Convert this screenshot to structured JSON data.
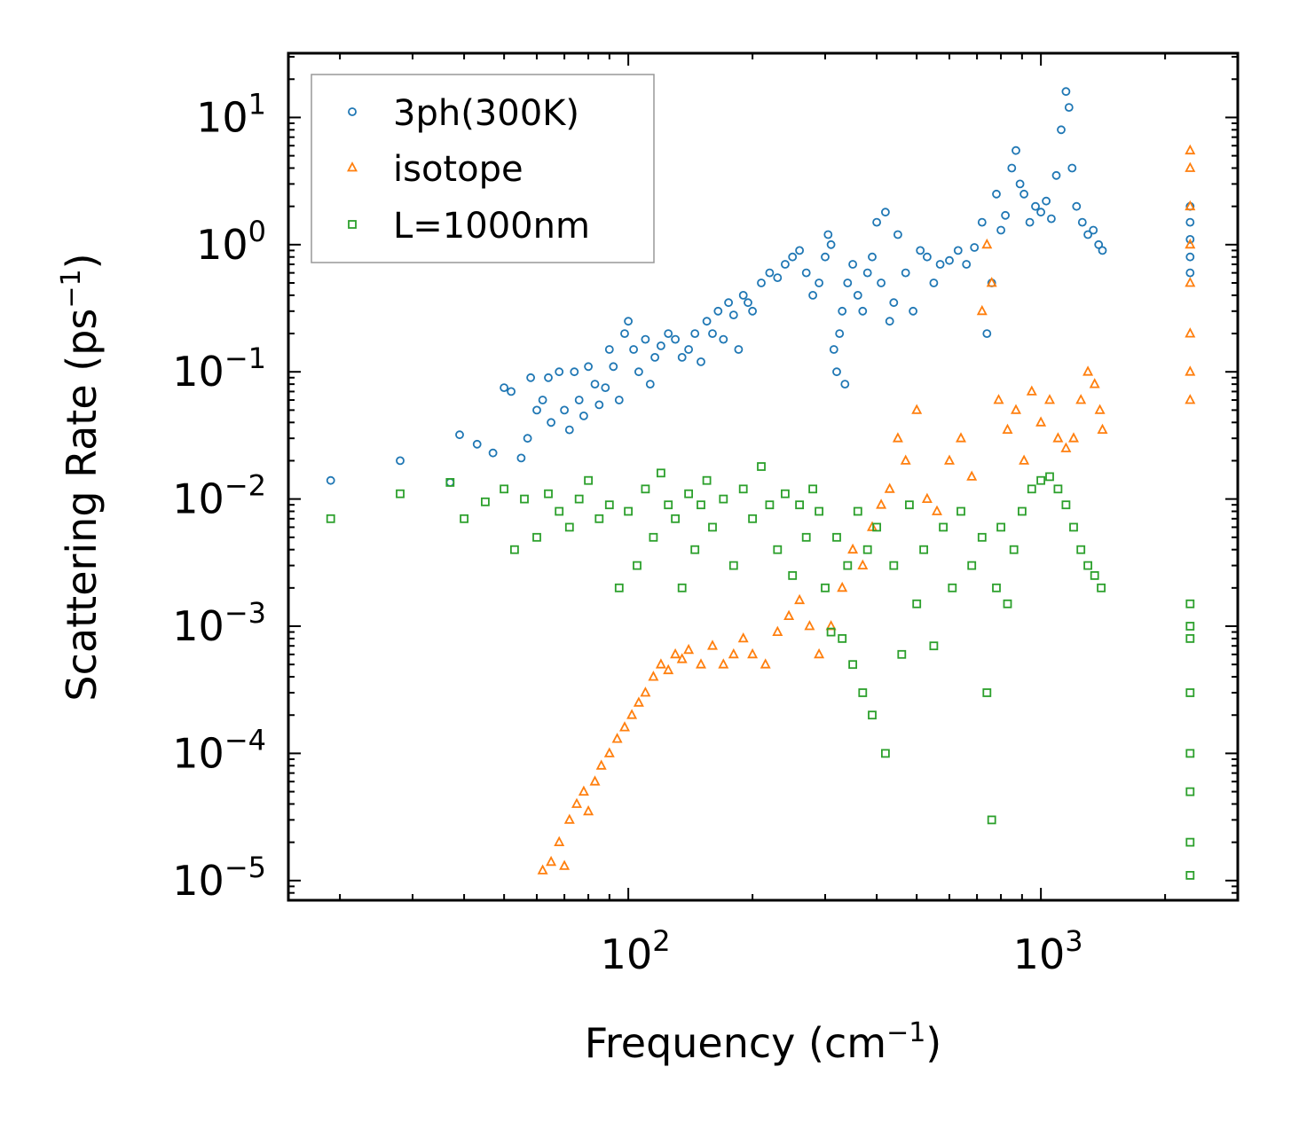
{
  "chart_data": {
    "type": "scatter",
    "title": "",
    "xlabel": "Frequency (cm",
    "xlabel_sup": "−1",
    "xlabel_end": ")",
    "ylabel": "Scattering Rate (ps",
    "ylabel_sup": "−1",
    "ylabel_end": ")",
    "x_scale": "log",
    "y_scale": "log",
    "xlim": [
      15,
      3000
    ],
    "ylim": [
      7e-06,
      32
    ],
    "grid": false,
    "legend_position": "top-left",
    "x_ticks": [
      {
        "value": 100,
        "base": "10",
        "exp": "2"
      },
      {
        "value": 1000,
        "base": "10",
        "exp": "3"
      }
    ],
    "y_ticks": [
      {
        "value": 10,
        "base": "10",
        "exp": "1"
      },
      {
        "value": 1,
        "base": "10",
        "exp": "0"
      },
      {
        "value": 0.1,
        "base": "10",
        "exp": "−1"
      },
      {
        "value": 0.01,
        "base": "10",
        "exp": "−2"
      },
      {
        "value": 0.001,
        "base": "10",
        "exp": "−3"
      },
      {
        "value": 0.0001,
        "base": "10",
        "exp": "−4"
      },
      {
        "value": 1e-05,
        "base": "10",
        "exp": "−5"
      }
    ],
    "series": [
      {
        "name": "3ph(300K)",
        "marker": "circle",
        "color": "#1f77b4",
        "points": [
          [
            19,
            0.014
          ],
          [
            28,
            0.02
          ],
          [
            37,
            0.0135
          ],
          [
            39,
            0.032
          ],
          [
            43,
            0.027
          ],
          [
            47,
            0.023
          ],
          [
            50,
            0.075
          ],
          [
            52,
            0.07
          ],
          [
            55,
            0.021
          ],
          [
            57,
            0.03
          ],
          [
            58,
            0.09
          ],
          [
            60,
            0.05
          ],
          [
            62,
            0.06
          ],
          [
            64,
            0.09
          ],
          [
            65,
            0.04
          ],
          [
            68,
            0.1
          ],
          [
            70,
            0.05
          ],
          [
            72,
            0.035
          ],
          [
            74,
            0.1
          ],
          [
            76,
            0.06
          ],
          [
            78,
            0.045
          ],
          [
            80,
            0.11
          ],
          [
            83,
            0.08
          ],
          [
            85,
            0.055
          ],
          [
            88,
            0.075
          ],
          [
            90,
            0.15
          ],
          [
            92,
            0.11
          ],
          [
            95,
            0.06
          ],
          [
            98,
            0.2
          ],
          [
            100,
            0.25
          ],
          [
            103,
            0.15
          ],
          [
            106,
            0.1
          ],
          [
            110,
            0.18
          ],
          [
            113,
            0.08
          ],
          [
            116,
            0.13
          ],
          [
            120,
            0.16
          ],
          [
            125,
            0.2
          ],
          [
            130,
            0.18
          ],
          [
            135,
            0.13
          ],
          [
            140,
            0.15
          ],
          [
            145,
            0.2
          ],
          [
            150,
            0.12
          ],
          [
            155,
            0.25
          ],
          [
            160,
            0.2
          ],
          [
            165,
            0.3
          ],
          [
            170,
            0.18
          ],
          [
            175,
            0.35
          ],
          [
            180,
            0.28
          ],
          [
            185,
            0.15
          ],
          [
            190,
            0.4
          ],
          [
            195,
            0.35
          ],
          [
            200,
            0.3
          ],
          [
            210,
            0.5
          ],
          [
            220,
            0.6
          ],
          [
            230,
            0.55
          ],
          [
            240,
            0.7
          ],
          [
            250,
            0.8
          ],
          [
            260,
            0.9
          ],
          [
            270,
            0.6
          ],
          [
            280,
            0.4
          ],
          [
            290,
            0.5
          ],
          [
            300,
            0.8
          ],
          [
            305,
            1.2
          ],
          [
            310,
            1.0
          ],
          [
            315,
            0.15
          ],
          [
            320,
            0.1
          ],
          [
            325,
            0.2
          ],
          [
            330,
            0.3
          ],
          [
            335,
            0.08
          ],
          [
            340,
            0.5
          ],
          [
            350,
            0.7
          ],
          [
            360,
            0.4
          ],
          [
            370,
            0.3
          ],
          [
            380,
            0.6
          ],
          [
            390,
            0.8
          ],
          [
            400,
            1.5
          ],
          [
            410,
            0.5
          ],
          [
            420,
            1.8
          ],
          [
            430,
            0.25
          ],
          [
            440,
            0.35
          ],
          [
            450,
            1.2
          ],
          [
            470,
            0.6
          ],
          [
            490,
            0.3
          ],
          [
            510,
            0.9
          ],
          [
            530,
            0.8
          ],
          [
            550,
            0.5
          ],
          [
            570,
            0.7
          ],
          [
            600,
            0.75
          ],
          [
            630,
            0.9
          ],
          [
            660,
            0.7
          ],
          [
            690,
            0.95
          ],
          [
            720,
            1.5
          ],
          [
            740,
            0.2
          ],
          [
            760,
            0.5
          ],
          [
            780,
            2.5
          ],
          [
            800,
            1.3
          ],
          [
            820,
            1.7
          ],
          [
            850,
            4.0
          ],
          [
            870,
            5.5
          ],
          [
            890,
            3.0
          ],
          [
            910,
            2.5
          ],
          [
            940,
            1.5
          ],
          [
            970,
            2.0
          ],
          [
            1000,
            1.8
          ],
          [
            1030,
            2.2
          ],
          [
            1060,
            1.6
          ],
          [
            1090,
            3.5
          ],
          [
            1120,
            8.0
          ],
          [
            1150,
            16.0
          ],
          [
            1170,
            12.0
          ],
          [
            1190,
            4.0
          ],
          [
            1220,
            2.0
          ],
          [
            1260,
            1.5
          ],
          [
            1300,
            1.2
          ],
          [
            1340,
            1.3
          ],
          [
            1380,
            1.0
          ],
          [
            1410,
            0.9
          ],
          [
            2300,
            1.5
          ],
          [
            2300,
            0.8
          ],
          [
            2300,
            2.0
          ],
          [
            2300,
            0.6
          ],
          [
            2300,
            1.1
          ]
        ]
      },
      {
        "name": "isotope",
        "marker": "triangle",
        "color": "#ff7f0e",
        "points": [
          [
            62,
            1.2e-05
          ],
          [
            65,
            1.4e-05
          ],
          [
            68,
            2e-05
          ],
          [
            70,
            1.3e-05
          ],
          [
            72,
            3e-05
          ],
          [
            75,
            4e-05
          ],
          [
            78,
            5e-05
          ],
          [
            80,
            3.5e-05
          ],
          [
            83,
            6e-05
          ],
          [
            86,
            8e-05
          ],
          [
            90,
            0.0001
          ],
          [
            94,
            0.00013
          ],
          [
            98,
            0.00016
          ],
          [
            102,
            0.0002
          ],
          [
            106,
            0.00025
          ],
          [
            110,
            0.0003
          ],
          [
            115,
            0.0004
          ],
          [
            120,
            0.0005
          ],
          [
            125,
            0.00045
          ],
          [
            130,
            0.0006
          ],
          [
            135,
            0.00055
          ],
          [
            140,
            0.00065
          ],
          [
            150,
            0.0005
          ],
          [
            160,
            0.0007
          ],
          [
            170,
            0.0005
          ],
          [
            180,
            0.0006
          ],
          [
            190,
            0.0008
          ],
          [
            200,
            0.0006
          ],
          [
            215,
            0.0005
          ],
          [
            230,
            0.0009
          ],
          [
            245,
            0.0012
          ],
          [
            260,
            0.0016
          ],
          [
            275,
            0.001
          ],
          [
            290,
            0.0006
          ],
          [
            310,
            0.001
          ],
          [
            330,
            0.002
          ],
          [
            350,
            0.004
          ],
          [
            370,
            0.003
          ],
          [
            390,
            0.006
          ],
          [
            410,
            0.009
          ],
          [
            430,
            0.012
          ],
          [
            450,
            0.03
          ],
          [
            470,
            0.02
          ],
          [
            500,
            0.05
          ],
          [
            530,
            0.01
          ],
          [
            560,
            0.008
          ],
          [
            600,
            0.02
          ],
          [
            640,
            0.03
          ],
          [
            680,
            0.015
          ],
          [
            720,
            0.3
          ],
          [
            740,
            1.0
          ],
          [
            760,
            0.5
          ],
          [
            790,
            0.06
          ],
          [
            830,
            0.035
          ],
          [
            870,
            0.05
          ],
          [
            910,
            0.02
          ],
          [
            950,
            0.07
          ],
          [
            1000,
            0.04
          ],
          [
            1050,
            0.06
          ],
          [
            1100,
            0.03
          ],
          [
            1150,
            0.025
          ],
          [
            1200,
            0.03
          ],
          [
            1250,
            0.06
          ],
          [
            1300,
            0.1
          ],
          [
            1350,
            0.08
          ],
          [
            1390,
            0.05
          ],
          [
            1410,
            0.035
          ],
          [
            2300,
            0.06
          ],
          [
            2300,
            0.2
          ],
          [
            2300,
            0.5
          ],
          [
            2300,
            1.0
          ],
          [
            2300,
            2.0
          ],
          [
            2300,
            4.0
          ],
          [
            2300,
            5.5
          ],
          [
            2300,
            0.1
          ]
        ]
      },
      {
        "name": "L=1000nm",
        "marker": "square",
        "color": "#2ca02c",
        "points": [
          [
            19,
            0.007
          ],
          [
            28,
            0.011
          ],
          [
            37,
            0.0135
          ],
          [
            40,
            0.007
          ],
          [
            45,
            0.0095
          ],
          [
            50,
            0.012
          ],
          [
            53,
            0.004
          ],
          [
            56,
            0.01
          ],
          [
            60,
            0.005
          ],
          [
            64,
            0.011
          ],
          [
            68,
            0.008
          ],
          [
            72,
            0.006
          ],
          [
            76,
            0.01
          ],
          [
            80,
            0.014
          ],
          [
            85,
            0.007
          ],
          [
            90,
            0.009
          ],
          [
            95,
            0.002
          ],
          [
            100,
            0.008
          ],
          [
            105,
            0.003
          ],
          [
            110,
            0.012
          ],
          [
            115,
            0.005
          ],
          [
            120,
            0.016
          ],
          [
            125,
            0.009
          ],
          [
            130,
            0.007
          ],
          [
            135,
            0.002
          ],
          [
            140,
            0.011
          ],
          [
            145,
            0.004
          ],
          [
            150,
            0.009
          ],
          [
            155,
            0.014
          ],
          [
            160,
            0.006
          ],
          [
            170,
            0.01
          ],
          [
            180,
            0.003
          ],
          [
            190,
            0.012
          ],
          [
            200,
            0.007
          ],
          [
            210,
            0.018
          ],
          [
            220,
            0.009
          ],
          [
            230,
            0.004
          ],
          [
            240,
            0.011
          ],
          [
            250,
            0.0025
          ],
          [
            260,
            0.009
          ],
          [
            270,
            0.005
          ],
          [
            280,
            0.012
          ],
          [
            290,
            0.008
          ],
          [
            300,
            0.002
          ],
          [
            310,
            0.0009
          ],
          [
            320,
            0.005
          ],
          [
            330,
            0.0008
          ],
          [
            340,
            0.003
          ],
          [
            350,
            0.0005
          ],
          [
            360,
            0.008
          ],
          [
            370,
            0.0003
          ],
          [
            380,
            0.004
          ],
          [
            390,
            0.0002
          ],
          [
            400,
            0.006
          ],
          [
            420,
            0.0001
          ],
          [
            440,
            0.003
          ],
          [
            460,
            0.0006
          ],
          [
            480,
            0.009
          ],
          [
            500,
            0.0015
          ],
          [
            520,
            0.004
          ],
          [
            550,
            0.0007
          ],
          [
            580,
            0.006
          ],
          [
            610,
            0.002
          ],
          [
            640,
            0.008
          ],
          [
            680,
            0.003
          ],
          [
            720,
            0.005
          ],
          [
            740,
            0.0003
          ],
          [
            760,
            3e-05
          ],
          [
            780,
            0.002
          ],
          [
            800,
            0.006
          ],
          [
            830,
            0.0015
          ],
          [
            860,
            0.004
          ],
          [
            900,
            0.008
          ],
          [
            950,
            0.012
          ],
          [
            1000,
            0.014
          ],
          [
            1050,
            0.015
          ],
          [
            1100,
            0.012
          ],
          [
            1150,
            0.009
          ],
          [
            1200,
            0.006
          ],
          [
            1250,
            0.004
          ],
          [
            1300,
            0.003
          ],
          [
            1350,
            0.0025
          ],
          [
            1400,
            0.002
          ],
          [
            2300,
            0.0015
          ],
          [
            2300,
            0.0008
          ],
          [
            2300,
            0.0003
          ],
          [
            2300,
            0.0001
          ],
          [
            2300,
            5e-05
          ],
          [
            2300,
            2e-05
          ],
          [
            2300,
            1.1e-05
          ],
          [
            2300,
            0.001
          ]
        ]
      }
    ]
  }
}
